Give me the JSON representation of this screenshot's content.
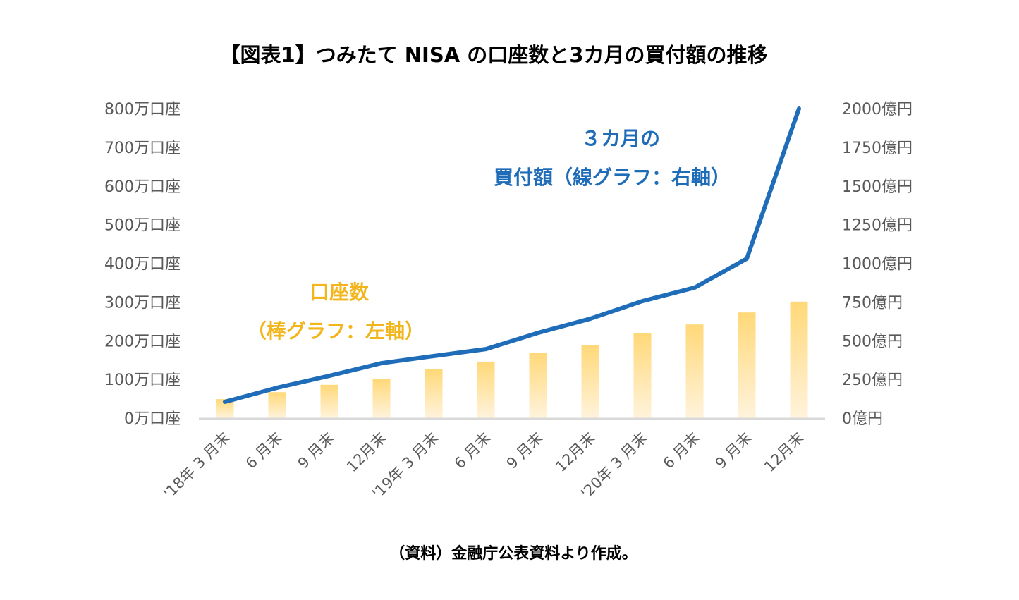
{
  "chart_data": {
    "type": "bar+line",
    "title": "【図表1】つみたて NISA の口座数と3カ月の買付額の推移",
    "categories": [
      "'18年 3 月末",
      "6 月末",
      "9 月末",
      "12月末",
      "'19年 3 月末",
      "6 月末",
      "9 月末",
      "12月末",
      "'20年 3 月末",
      "6 月末",
      "9 月末",
      "12月末"
    ],
    "series": [
      {
        "name": "口座数",
        "kind": "bar",
        "axis": "left",
        "unit": "万口座",
        "color": "#FFD878",
        "color_fade": "#FFF3DC",
        "values": [
          49,
          67,
          86,
          102,
          126,
          146,
          169,
          188,
          219,
          242,
          273,
          301
        ]
      },
      {
        "name": "3カ月の買付額",
        "kind": "line",
        "axis": "right",
        "unit": "億円",
        "color": "#1F6DB8",
        "values": [
          105,
          196,
          273,
          355,
          401,
          446,
          551,
          642,
          756,
          843,
          1030,
          2000
        ]
      }
    ],
    "left_axis": {
      "ylim": [
        0,
        800
      ],
      "ticks": [
        0,
        100,
        200,
        300,
        400,
        500,
        600,
        700,
        800
      ],
      "tick_labels": [
        "0万口座",
        "100万口座",
        "200万口座",
        "300万口座",
        "400万口座",
        "500万口座",
        "600万口座",
        "700万口座",
        "800万口座"
      ]
    },
    "right_axis": {
      "ylim": [
        0,
        2000
      ],
      "ticks": [
        0,
        250,
        500,
        750,
        1000,
        1250,
        1500,
        1750,
        2000
      ],
      "tick_labels": [
        "0億円",
        "250億円",
        "500億円",
        "750億円",
        "1000億円",
        "1250億円",
        "1500億円",
        "1750億円",
        "2000億円"
      ]
    },
    "annotations": {
      "line_label": [
        "３カ月の",
        "買付額（線グラフ：右軸）"
      ],
      "bar_label": [
        "口座数",
        "（棒グラフ：左軸）"
      ]
    },
    "grid": false,
    "legend": "none",
    "xlabel": "",
    "ylabel": "",
    "source": "（資料）金融庁公表資料より作成。"
  },
  "colors": {
    "axis_line": "#D9D9D9",
    "tick_text": "#595959"
  }
}
